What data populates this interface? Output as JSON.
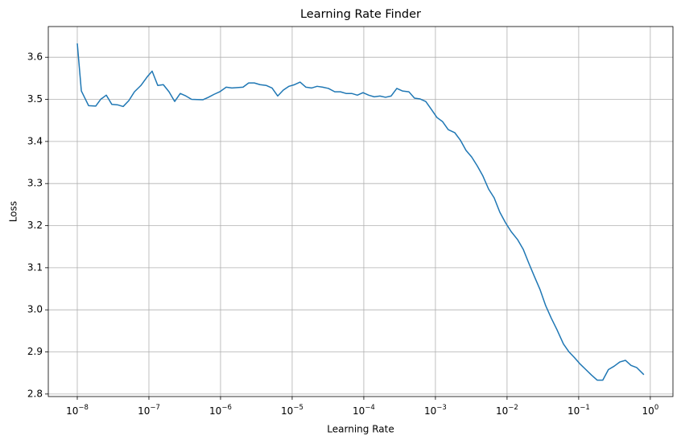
{
  "chart_data": {
    "type": "line",
    "title": "Learning Rate Finder",
    "x_label": "Learning Rate",
    "y_label": "Loss",
    "x_scale": "log",
    "grid": true,
    "xlim": [
      3.94e-09,
      2.07
    ],
    "ylim": [
      2.794,
      3.673
    ],
    "xticks": [
      {
        "value": 1e-08,
        "label": "10−8"
      },
      {
        "value": 1e-07,
        "label": "10−7"
      },
      {
        "value": 1e-06,
        "label": "10−6"
      },
      {
        "value": 1e-05,
        "label": "10−5"
      },
      {
        "value": 0.0001,
        "label": "10−4"
      },
      {
        "value": 0.001,
        "label": "10−3"
      },
      {
        "value": 0.01,
        "label": "10−2"
      },
      {
        "value": 0.1,
        "label": "10−1"
      },
      {
        "value": 1,
        "label": "100"
      }
    ],
    "yticks": [
      2.8,
      2.9,
      {
        "value": 3,
        "label": "3.0"
      },
      3.1,
      3.2,
      3.3,
      3.4,
      3.5,
      3.6
    ],
    "x": [
      1e-08,
      1.14e-08,
      1.44e-08,
      1.81e-08,
      2.12e-08,
      2.54e-08,
      3.04e-08,
      3.65e-08,
      4.37e-08,
      5.24e-08,
      6.28e-08,
      7.73e-08,
      9.51e-08,
      1.11e-07,
      1.33e-07,
      1.59e-07,
      1.91e-07,
      2.29e-07,
      2.74e-07,
      3.29e-07,
      3.94e-07,
      5.66e-07,
      6.78e-07,
      8.13e-07,
      9.75e-07,
      1.2e-06,
      1.44e-06,
      2.06e-06,
      2.47e-06,
      2.96e-06,
      3.56e-06,
      4.37e-06,
      5.24e-06,
      6.28e-06,
      7.52e-06,
      9.02e-06,
      1.08e-05,
      1.29e-05,
      1.55e-05,
      1.86e-05,
      2.23e-05,
      2.67e-05,
      3.21e-05,
      3.94e-05,
      4.72e-05,
      5.66e-05,
      6.78e-05,
      8.13e-05,
      9.75e-05,
      0.000117,
      0.00014,
      0.000168,
      0.000201,
      0.000241,
      0.000289,
      0.000346,
      0.000426,
      0.00051,
      0.000612,
      0.000733,
      0.000879,
      0.00105,
      0.00126,
      0.00151,
      0.00186,
      0.00223,
      0.00267,
      0.00321,
      0.00384,
      0.0046,
      0.00552,
      0.00661,
      0.00792,
      0.00951,
      0.0114,
      0.014,
      0.0168,
      0.0201,
      0.0241,
      0.0289,
      0.0346,
      0.0415,
      0.0497,
      0.0612,
      0.0733,
      0.0879,
      0.105,
      0.126,
      0.151,
      0.181,
      0.217,
      0.26,
      0.312,
      0.374,
      0.449,
      0.538,
      0.644,
      0.813
    ],
    "series": [
      {
        "name": "Loss",
        "color": "#1f77b4",
        "values": [
          3.633,
          3.52,
          3.485,
          3.484,
          3.5,
          3.51,
          3.488,
          3.487,
          3.483,
          3.497,
          3.518,
          3.533,
          3.554,
          3.567,
          3.533,
          3.535,
          3.518,
          3.495,
          3.514,
          3.508,
          3.5,
          3.499,
          3.505,
          3.512,
          3.518,
          3.529,
          3.527,
          3.529,
          3.539,
          3.539,
          3.535,
          3.533,
          3.527,
          3.508,
          3.522,
          3.531,
          3.535,
          3.541,
          3.529,
          3.527,
          3.531,
          3.529,
          3.526,
          3.518,
          3.518,
          3.514,
          3.514,
          3.51,
          3.516,
          3.51,
          3.506,
          3.508,
          3.505,
          3.508,
          3.526,
          3.52,
          3.518,
          3.503,
          3.501,
          3.495,
          3.476,
          3.457,
          3.447,
          3.428,
          3.421,
          3.403,
          3.379,
          3.363,
          3.342,
          3.318,
          3.287,
          3.266,
          3.232,
          3.207,
          3.186,
          3.167,
          3.144,
          3.111,
          3.079,
          3.048,
          3.01,
          2.98,
          2.953,
          2.919,
          2.9,
          2.886,
          2.871,
          2.858,
          2.845,
          2.833,
          2.833,
          2.858,
          2.866,
          2.876,
          2.88,
          2.868,
          2.863,
          2.846
        ]
      }
    ]
  }
}
